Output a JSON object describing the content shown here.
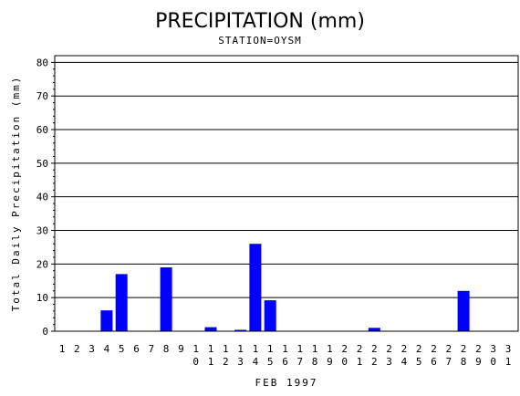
{
  "chart_data": {
    "type": "bar",
    "title": "PRECIPITATION (mm)",
    "subtitle": "STATION=OYSM",
    "xlabel": "FEB 1997",
    "ylabel": "Total Daily Precipitation (mm)",
    "ylim": [
      0,
      82
    ],
    "yticks": [
      0,
      10,
      20,
      30,
      40,
      50,
      60,
      70,
      80
    ],
    "grid": "horizontal",
    "categories": [
      "1",
      "2",
      "3",
      "4",
      "5",
      "6",
      "7",
      "8",
      "9",
      "10",
      "11",
      "12",
      "13",
      "14",
      "15",
      "16",
      "17",
      "18",
      "19",
      "20",
      "21",
      "22",
      "23",
      "24",
      "25",
      "26",
      "27",
      "28",
      "29",
      "30",
      "31"
    ],
    "values": [
      0,
      0,
      0,
      6.2,
      17,
      0,
      0,
      19,
      0,
      0,
      1.2,
      0,
      0.4,
      26,
      9.2,
      0,
      0,
      0,
      0,
      0,
      0,
      1.0,
      0,
      0,
      0,
      0,
      0,
      12,
      0,
      0,
      0
    ],
    "bar_color": "#0000ff"
  }
}
